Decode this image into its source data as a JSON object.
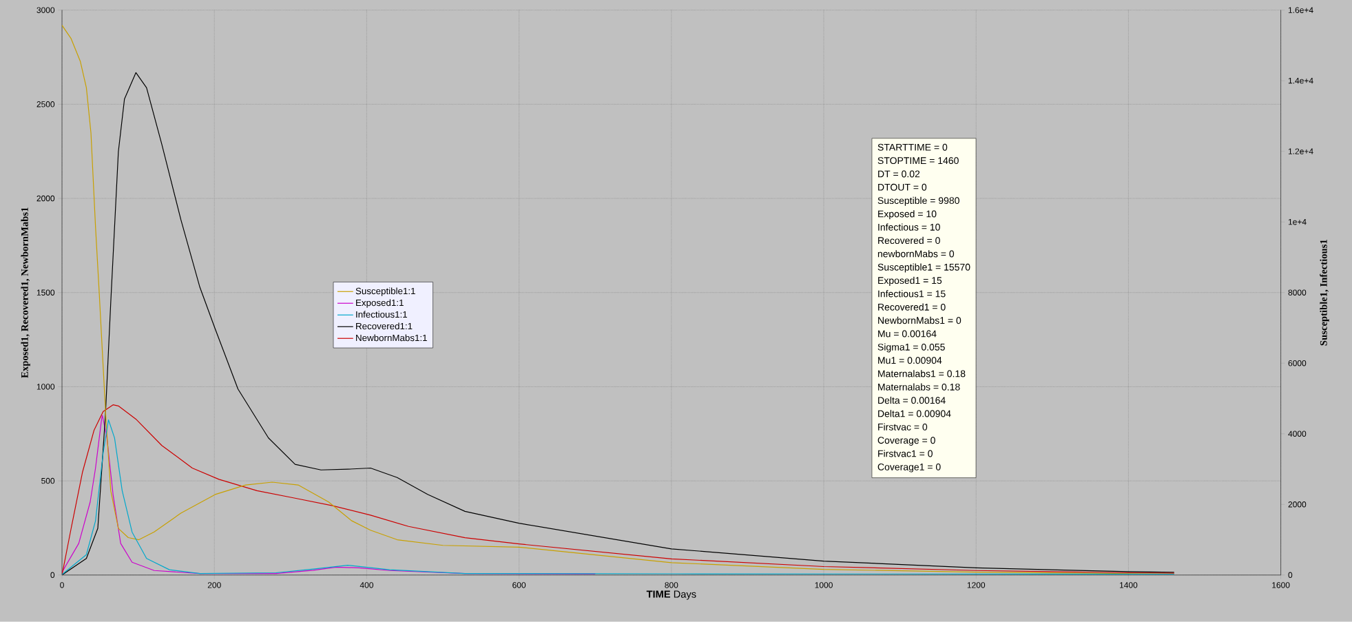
{
  "chart_data": {
    "type": "line",
    "xlabel": "**TIME** Days",
    "ylabel": "Exposed1, Recovered1, NewbornMabs1",
    "y2label": "Susceptible1, Infectious1",
    "xlim": [
      0,
      1600
    ],
    "xticks": [
      0,
      200,
      400,
      600,
      800,
      1000,
      1200,
      1400,
      1600
    ],
    "ylim": [
      0,
      3000
    ],
    "yticks": [
      0,
      500,
      1000,
      1500,
      2000,
      2500,
      3000
    ],
    "y2lim": [
      0,
      16000
    ],
    "y2ticks": [
      0,
      2000,
      4000,
      6000,
      8000,
      {
        "value": 10000,
        "label": "1e+4"
      },
      {
        "value": 12000,
        "label": "1.2e+4"
      },
      {
        "value": 14000,
        "label": "1.4e+4"
      },
      {
        "value": 16000,
        "label": "1.6e+4"
      }
    ],
    "grid": true,
    "legend": "left",
    "marker": "none",
    "line_style": "solid",
    "series": [
      {
        "name": "Susceptible1:1",
        "color": "#c8a000",
        "axis": "y2",
        "x": [
          0,
          12,
          24,
          32,
          38,
          44,
          49,
          54,
          58,
          64,
          74,
          87,
          101,
          121,
          156,
          201,
          241,
          276,
          310,
          350,
          380,
          405,
          440,
          500,
          600,
          800,
          1000,
          1200,
          1400,
          1460
        ],
        "values": [
          15570,
          15190,
          14550,
          13800,
          12520,
          9860,
          7940,
          5910,
          4310,
          2390,
          1320,
          1060,
          1000,
          1220,
          1750,
          2280,
          2550,
          2630,
          2550,
          2070,
          1540,
          1270,
          1000,
          840,
          790,
          350,
          160,
          80,
          40,
          30
        ]
      },
      {
        "name": "Exposed1:1",
        "color": "#cc00cc",
        "x": [
          0,
          22,
          37,
          44,
          52,
          53,
          59,
          67,
          77,
          92,
          121,
          181,
          281,
          330,
          360,
          390,
          430,
          529,
          700
        ],
        "values": [
          15,
          168,
          388,
          568,
          828,
          848,
          728,
          428,
          168,
          68,
          24,
          8,
          8,
          25,
          42,
          38,
          24,
          8,
          6
        ]
      },
      {
        "name": "Infectious1:1",
        "color": "#00a8cc",
        "axis": "y2",
        "x": [
          0,
          32,
          44,
          54,
          61,
          69,
          79,
          92,
          111,
          141,
          181,
          281,
          330,
          375,
          430,
          529,
          800,
          1100,
          1460
        ],
        "values": [
          15,
          576,
          1536,
          3456,
          4395,
          3880,
          2390,
          1216,
          470,
          150,
          43,
          64,
          170,
          277,
          150,
          43,
          35,
          30,
          25
        ]
      },
      {
        "name": "Recovered1:1",
        "color": "#000000",
        "x": [
          0,
          32,
          47,
          57,
          64,
          74,
          82,
          97,
          111,
          131,
          156,
          181,
          201,
          231,
          271,
          306,
          340,
          375,
          405,
          440,
          480,
          529,
          600,
          800,
          1000,
          1200,
          1400,
          1460
        ],
        "values": [
          0,
          88,
          248,
          848,
          1448,
          2248,
          2528,
          2668,
          2588,
          2288,
          1888,
          1528,
          1308,
          988,
          728,
          588,
          558,
          562,
          568,
          518,
          428,
          338,
          275,
          139,
          74,
          38,
          18,
          14
        ]
      },
      {
        "name": "NewbornMabs1:1",
        "color": "#cc0000",
        "x": [
          0,
          12,
          27,
          42,
          54,
          67,
          74,
          97,
          131,
          171,
          206,
          256,
          306,
          355,
          405,
          455,
          529,
          600,
          800,
          1000,
          1200,
          1400,
          1460
        ],
        "values": [
          0,
          248,
          548,
          768,
          868,
          904,
          898,
          828,
          688,
          568,
          508,
          448,
          408,
          368,
          318,
          258,
          198,
          165,
          86,
          45,
          24,
          12,
          10
        ]
      }
    ],
    "annotations": [
      "STARTTIME = 0",
      "STOPTIME = 1460",
      "DT = 0.02",
      "DTOUT = 0",
      "Susceptible = 9980",
      "Exposed = 10",
      "Infectious = 10",
      "Recovered = 0",
      "newbornMabs = 0",
      "Susceptible1 = 15570",
      "Exposed1 = 15",
      "Infectious1 = 15",
      "Recovered1 = 0",
      "NewbornMabs1 = 0",
      "Mu = 0.00164",
      "Sigma1 = 0.055",
      "Mu1 = 0.00904",
      "Maternalabs1 = 0.18",
      "Maternalabs = 0.18",
      "Delta = 0.00164",
      "Delta1 = 0.00904",
      "Firstvac = 0",
      "Coverage = 0",
      "Firstvac1 = 0",
      "Coverage1 = 0"
    ]
  }
}
